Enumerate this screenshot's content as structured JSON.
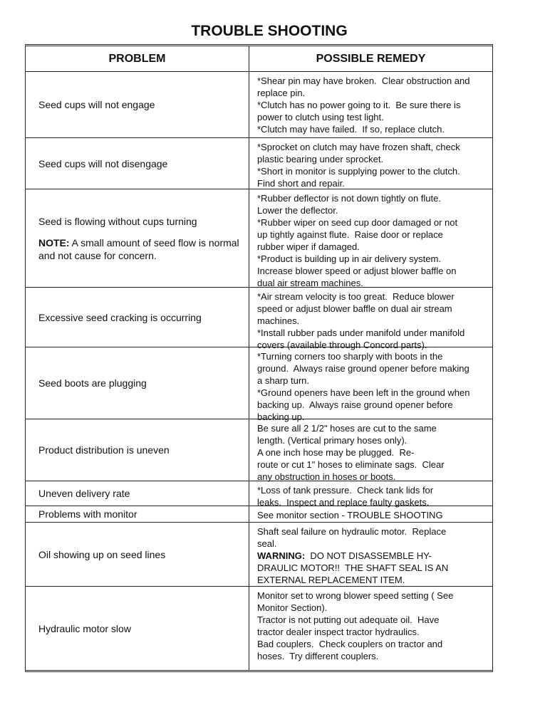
{
  "title": "TROUBLE SHOOTING",
  "headers": {
    "problem": "PROBLEM",
    "remedy": "POSSIBLE REMEDY"
  },
  "rows": [
    {
      "problem": "Seed cups will not engage",
      "remedy": [
        {
          "t": "*Shear pin may have broken.  Clear obstruction and"
        },
        {
          "t": "replace pin."
        },
        {
          "t": "*Clutch has no power going to it.  Be sure there is"
        },
        {
          "t": "power to clutch using test light."
        },
        {
          "t": "*Clutch may have failed.  If so, replace clutch."
        }
      ]
    },
    {
      "problem": "Seed cups will not disengage",
      "remedy": [
        {
          "t": "*Sprocket on clutch may have frozen shaft, check"
        },
        {
          "t": "plastic bearing under sprocket."
        },
        {
          "t": "*Short in monitor is supplying power to the clutch."
        },
        {
          "t": "Find short and repair."
        }
      ]
    },
    {
      "problem": "Seed is flowing without cups turning",
      "note_label": "NOTE:",
      "note_text": " A small amount of seed flow is normal and not cause for concern.",
      "remedy": [
        {
          "t": "*Rubber deflector is not down tightly on flute."
        },
        {
          "t": "Lower the deflector."
        },
        {
          "t": "*Rubber wiper on seed cup door damaged or not"
        },
        {
          "t": "up tightly against flute.  Raise door or replace"
        },
        {
          "t": "rubber wiper if damaged."
        },
        {
          "t": "*Product is building up in air delivery system."
        },
        {
          "t": "Increase blower speed or adjust blower baffle on"
        },
        {
          "t": "dual air stream machines."
        }
      ]
    },
    {
      "problem": "Excessive seed cracking is occurring",
      "remedy": [
        {
          "t": "*Air stream velocity is too great.  Reduce blower"
        },
        {
          "t": "speed or adjust blower baffle on dual air stream"
        },
        {
          "t": "machines."
        },
        {
          "t": "*Install rubber pads under manifold under manifold"
        },
        {
          "t": "covers (available through Concord parts)."
        }
      ]
    },
    {
      "problem": "Seed boots are plugging",
      "remedy": [
        {
          "t": "*Turning corners too sharply with boots in the"
        },
        {
          "t": "ground.  Always raise ground opener before making"
        },
        {
          "t": "a sharp turn."
        },
        {
          "t": "*Ground openers have been left in the ground when"
        },
        {
          "t": "backing up.  Always raise ground opener before"
        },
        {
          "t": "backing up."
        }
      ]
    },
    {
      "problem": "Product distribution is uneven",
      "remedy": [
        {
          "t": "Be sure all 2 1/2\" hoses are cut to the same"
        },
        {
          "t": "length. (Vertical primary hoses only)."
        },
        {
          "t": "A one inch hose may be plugged.  Re-"
        },
        {
          "t": "route or cut 1\" hoses to eliminate sags.  Clear"
        },
        {
          "t": "any obstruction in hoses or boots."
        }
      ]
    },
    {
      "problem": "Uneven delivery rate",
      "remedy": [
        {
          "t": "*Loss of tank pressure.  Check tank lids for"
        },
        {
          "t": "leaks.  Inspect and replace faulty gaskets."
        }
      ]
    },
    {
      "problem": "Problems with monitor",
      "remedy": [
        {
          "t": "See monitor section - TROUBLE SHOOTING"
        }
      ]
    },
    {
      "problem": "Oil showing up on seed lines",
      "remedy": [
        {
          "t": "Shaft seal failure on hydraulic motor.  Replace"
        },
        {
          "t": "seal."
        },
        {
          "b": "WARNING:",
          "t": "  DO NOT DISASSEMBLE HY-"
        },
        {
          "t": "DRAULIC MOTOR!!  THE SHAFT SEAL IS AN"
        },
        {
          "t": "EXTERNAL REPLACEMENT ITEM."
        }
      ]
    },
    {
      "problem": "Hydraulic motor slow",
      "remedy": [
        {
          "t": "Monitor set to wrong blower speed setting ( See"
        },
        {
          "t": "Monitor Section)."
        },
        {
          "t": "Tractor is not putting out adequate oil.  Have"
        },
        {
          "t": "tractor dealer inspect tractor hydraulics."
        },
        {
          "t": "Bad couplers.  Check couplers on tractor and"
        },
        {
          "t": "hoses.  Try different couplers."
        }
      ]
    }
  ]
}
